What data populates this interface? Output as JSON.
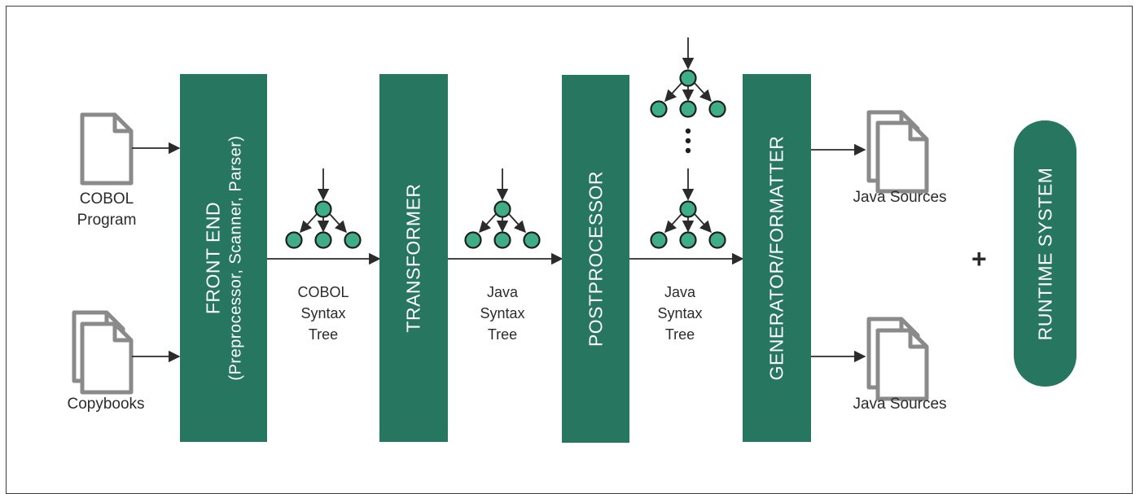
{
  "inputs": {
    "cobol_program": [
      "COBOL",
      "Program"
    ],
    "copybooks": "Copybooks"
  },
  "stages": {
    "front_end": {
      "title": "FRONT END",
      "subtitle": "(Preprocessor, Scanner, Parser)"
    },
    "transformer": "TRANSFORMER",
    "postprocessor": "POSTPROCESSOR",
    "generator": "GENERATOR/FORMATTER"
  },
  "trees": {
    "cobol_syntax_tree": [
      "COBOL",
      "Syntax",
      "Tree"
    ],
    "java_syntax_tree_1": [
      "Java",
      "Syntax",
      "Tree"
    ],
    "java_syntax_tree_2": [
      "Java",
      "Syntax",
      "Tree"
    ]
  },
  "outputs": {
    "java_sources_top": "Java Sources",
    "java_sources_bottom": "Java Sources"
  },
  "plus": "+",
  "runtime_system": "RUNTIME SYSTEM",
  "colors": {
    "stage": "#27765f",
    "node": "#3fae86",
    "doc": "#8a8a8a",
    "text": "#2b2b2b"
  }
}
